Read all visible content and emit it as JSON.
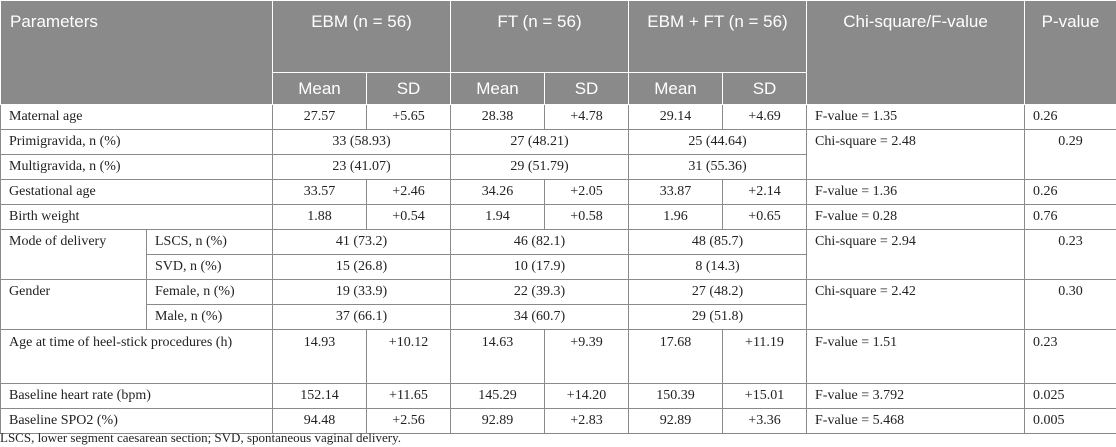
{
  "header": {
    "parameters": "Parameters",
    "ebm": "EBM (n = 56)",
    "ft": "FT (n = 56)",
    "ebm_ft": "EBM + FT (n = 56)",
    "chi_f": "Chi-square/F-value",
    "p": "P-value",
    "mean": "Mean",
    "sd": "SD"
  },
  "rows": {
    "maternal_age": {
      "label": "Maternal age",
      "ebm_mean": "27.57",
      "ebm_sd": "+5.65",
      "ft_mean": "28.38",
      "ft_sd": "+4.78",
      "both_mean": "29.14",
      "both_sd": "+4.69",
      "stat": "F-value = 1.35",
      "p": "0.26"
    },
    "primigravida": {
      "label": "Primigravida, n (%)",
      "ebm": "33 (58.93)",
      "ft": "27 (48.21)",
      "both": "25 (44.64)",
      "stat": "Chi-square = 2.48",
      "p": "0.29"
    },
    "multigravida": {
      "label": "Multigravida, n (%)",
      "ebm": "23 (41.07)",
      "ft": "29 (51.79)",
      "both": "31 (55.36)"
    },
    "gestational_age": {
      "label": "Gestational age",
      "ebm_mean": "33.57",
      "ebm_sd": "+2.46",
      "ft_mean": "34.26",
      "ft_sd": "+2.05",
      "both_mean": "33.87",
      "both_sd": "+2.14",
      "stat": "F-value = 1.36",
      "p": "0.26"
    },
    "birth_weight": {
      "label": "Birth weight",
      "ebm_mean": "1.88",
      "ebm_sd": "+0.54",
      "ft_mean": "1.94",
      "ft_sd": "+0.58",
      "both_mean": "1.96",
      "both_sd": "+0.65",
      "stat": "F-value = 0.28",
      "p": "0.76"
    },
    "mode_of_delivery": {
      "label": "Mode of delivery",
      "stat": "Chi-square = 2.94",
      "p": "0.23",
      "lscs": {
        "label": "LSCS, n (%)",
        "ebm": "41 (73.2)",
        "ft": "46 (82.1)",
        "both": "48 (85.7)"
      },
      "svd": {
        "label": "SVD, n (%)",
        "ebm": "15 (26.8)",
        "ft": "10 (17.9)",
        "both": "8 (14.3)"
      }
    },
    "gender": {
      "label": "Gender",
      "stat": "Chi-square = 2.42",
      "p": "0.30",
      "female": {
        "label": "Female, n (%)",
        "ebm": "19 (33.9)",
        "ft": "22 (39.3)",
        "both": "27 (48.2)"
      },
      "male": {
        "label": "Male, n (%)",
        "ebm": "37 (66.1)",
        "ft": "34 (60.7)",
        "both": "29 (51.8)"
      }
    },
    "heel_stick_age": {
      "label": "Age at time of heel-stick procedures (h)",
      "ebm_mean": "14.93",
      "ebm_sd": "+10.12",
      "ft_mean": "14.63",
      "ft_sd": "+9.39",
      "both_mean": "17.68",
      "both_sd": "+11.19",
      "stat": "F-value = 1.51",
      "p": "0.23"
    },
    "heart_rate": {
      "label": "Baseline heart rate (bpm)",
      "ebm_mean": "152.14",
      "ebm_sd": "+11.65",
      "ft_mean": "145.29",
      "ft_sd": "+14.20",
      "both_mean": "150.39",
      "both_sd": "+15.01",
      "stat": "F-value = 3.792",
      "p": "0.025"
    },
    "spo2": {
      "label": "Baseline SPO2 (%)",
      "ebm_mean": "94.48",
      "ebm_sd": "+2.56",
      "ft_mean": "92.89",
      "ft_sd": "+2.83",
      "both_mean": "92.89",
      "both_sd": "+3.36",
      "stat": "F-value = 5.468",
      "p": "0.005"
    }
  },
  "footnote": "LSCS, lower segment caesarean section; SVD, spontaneous vaginal delivery."
}
